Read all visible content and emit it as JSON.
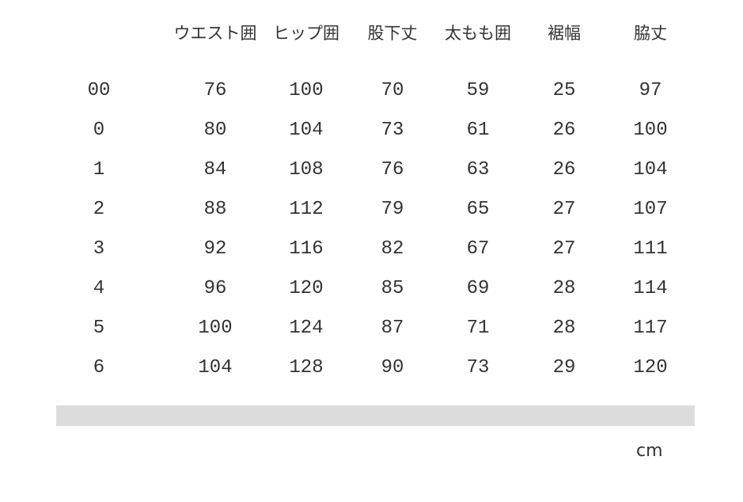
{
  "headers": [
    "",
    "ウエスト囲",
    "ヒップ囲",
    "股下丈",
    "太もも囲",
    "裾幅",
    "脇丈"
  ],
  "rows": [
    [
      "00",
      "76",
      "100",
      "70",
      "59",
      "25",
      "97"
    ],
    [
      "0",
      "80",
      "104",
      "73",
      "61",
      "26",
      "100"
    ],
    [
      "1",
      "84",
      "108",
      "76",
      "63",
      "26",
      "104"
    ],
    [
      "2",
      "88",
      "112",
      "79",
      "65",
      "27",
      "107"
    ],
    [
      "3",
      "92",
      "116",
      "82",
      "67",
      "27",
      "111"
    ],
    [
      "4",
      "96",
      "120",
      "85",
      "69",
      "28",
      "114"
    ],
    [
      "5",
      "100",
      "124",
      "87",
      "71",
      "28",
      "117"
    ],
    [
      "6",
      "104",
      "128",
      "90",
      "73",
      "29",
      "120"
    ]
  ],
  "unit": "cm",
  "colors": {
    "text": "#333333",
    "bar": "#dcdcdc"
  }
}
